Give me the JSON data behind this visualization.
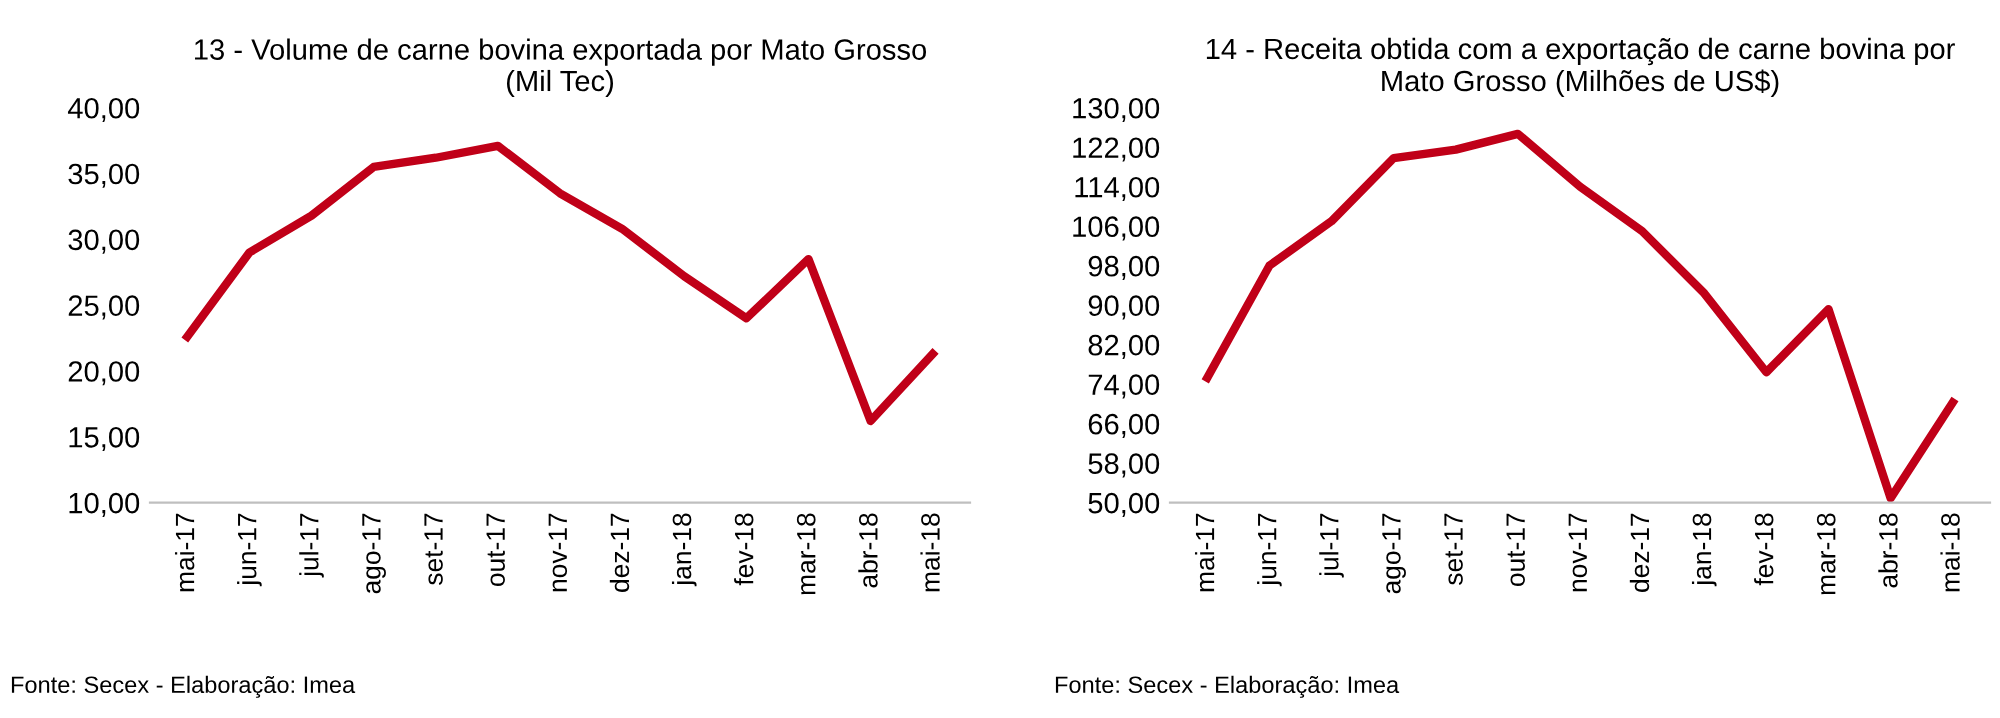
{
  "chart_data": [
    {
      "type": "line",
      "title": "13 - Volume de carne bovina exportada por Mato Grosso\n(Mil Tec)",
      "categories": [
        "mai-17",
        "jun-17",
        "jul-17",
        "ago-17",
        "set-17",
        "out-17",
        "nov-17",
        "dez-17",
        "jan-18",
        "fev-18",
        "mar-18",
        "abr-18",
        "mai-18"
      ],
      "series": [
        {
          "color": "#c00018",
          "values": [
            22.6,
            29.0,
            31.8,
            35.5,
            36.2,
            37.1,
            33.5,
            30.8,
            27.2,
            24.0,
            28.5,
            16.2,
            21.3
          ]
        }
      ],
      "ylim": [
        10,
        40
      ],
      "yticks": [
        {
          "value": 10,
          "label": "10,00"
        },
        {
          "value": 15,
          "label": "15,00"
        },
        {
          "value": 20,
          "label": "20,00"
        },
        {
          "value": 25,
          "label": "25,00"
        },
        {
          "value": 30,
          "label": "30,00"
        },
        {
          "value": 35,
          "label": "35,00"
        },
        {
          "value": 40,
          "label": "40,00"
        }
      ],
      "grid": false,
      "legend": false,
      "annotations": [
        "Fonte: Secex - Elaboração: Imea"
      ]
    },
    {
      "type": "line",
      "title": "14 - Receita obtida com a exportação de carne bovina por\nMato Grosso (Milhões de US$)",
      "categories": [
        "mai-17",
        "jun-17",
        "jul-17",
        "ago-17",
        "set-17",
        "out-17",
        "nov-17",
        "dez-17",
        "jan-18",
        "fev-18",
        "mar-18",
        "abr-18",
        "mai-18"
      ],
      "series": [
        {
          "color": "#c00018",
          "values": [
            75.3,
            98.0,
            107.0,
            119.8,
            121.5,
            124.7,
            114.0,
            105.0,
            92.4,
            76.4,
            89.2,
            50.9,
            70.3
          ]
        }
      ],
      "ylim": [
        50,
        130
      ],
      "yticks": [
        {
          "value": 50,
          "label": "50,00"
        },
        {
          "value": 58,
          "label": "58,00"
        },
        {
          "value": 66,
          "label": "66,00"
        },
        {
          "value": 74,
          "label": "74,00"
        },
        {
          "value": 82,
          "label": "82,00"
        },
        {
          "value": 90,
          "label": "90,00"
        },
        {
          "value": 98,
          "label": "98,00"
        },
        {
          "value": 106,
          "label": "106,00"
        },
        {
          "value": 114,
          "label": "114,00"
        },
        {
          "value": 122,
          "label": "122,00"
        },
        {
          "value": 130,
          "label": "130,00"
        }
      ],
      "grid": false,
      "legend": false,
      "annotations": [
        "Fonte: Secex - Elaboração: Imea"
      ]
    }
  ]
}
